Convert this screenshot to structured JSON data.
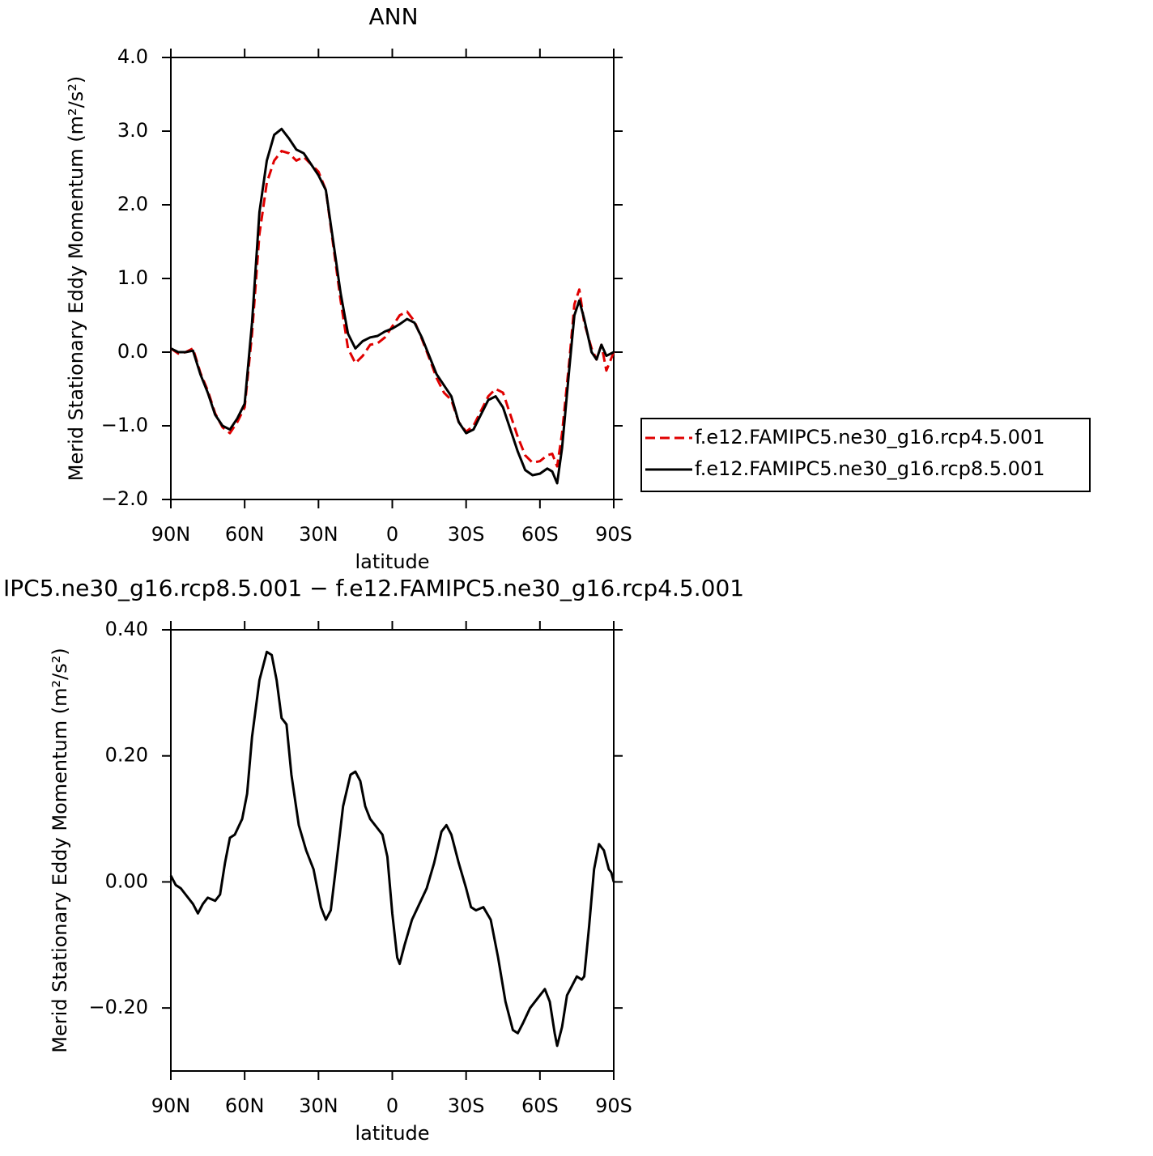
{
  "chart_data": [
    {
      "type": "line",
      "title": "ANN",
      "xlabel": "latitude",
      "ylabel": "Merid Stationary Eddy Momentum (m²/s²)",
      "xlim": [
        90,
        -90
      ],
      "xticks": [
        {
          "value": 90,
          "label": "90N"
        },
        {
          "value": 60,
          "label": "60N"
        },
        {
          "value": 30,
          "label": "30N"
        },
        0,
        {
          "value": -30,
          "label": "30S"
        },
        {
          "value": -60,
          "label": "60S"
        },
        {
          "value": -90,
          "label": "90S"
        }
      ],
      "ylim": [
        -2,
        4
      ],
      "yticks": [
        {
          "value": -2,
          "label": "−2.0"
        },
        {
          "value": -1,
          "label": "−1.0"
        },
        {
          "value": 0,
          "label": "0.0"
        },
        {
          "value": 1,
          "label": "1.0"
        },
        {
          "value": 2,
          "label": "2.0"
        },
        {
          "value": 3,
          "label": "3.0"
        },
        {
          "value": 4,
          "label": "4.0"
        }
      ],
      "legend": "right",
      "x": [
        90,
        87,
        84,
        81,
        78,
        75,
        72,
        69,
        66,
        63,
        60,
        57,
        54,
        51,
        48,
        45,
        42,
        39,
        36,
        33,
        30,
        27,
        24,
        21,
        18,
        15,
        12,
        9,
        6,
        3,
        0,
        -3,
        -6,
        -9,
        -12,
        -15,
        -18,
        -21,
        -24,
        -27,
        -30,
        -33,
        -36,
        -39,
        -42,
        -45,
        -48,
        -51,
        -54,
        -57,
        -60,
        -63,
        -65,
        -67,
        -69,
        -72,
        -74,
        -76,
        -78,
        -81,
        -83,
        -85,
        -87,
        -90
      ],
      "series": [
        {
          "name": "f.e12.FAMIPC5.ne30_g16.rcp4.5.001",
          "color": "#e00000",
          "style": "dashed",
          "values": [
            0.05,
            -0.02,
            0.0,
            0.05,
            -0.28,
            -0.52,
            -0.83,
            -1.02,
            -1.1,
            -0.95,
            -0.75,
            0.25,
            1.6,
            2.3,
            2.6,
            2.73,
            2.7,
            2.6,
            2.65,
            2.55,
            2.45,
            2.2,
            1.45,
            0.7,
            0.05,
            -0.15,
            -0.05,
            0.1,
            0.12,
            0.2,
            0.35,
            0.5,
            0.55,
            0.42,
            0.18,
            -0.08,
            -0.35,
            -0.55,
            -0.65,
            -0.95,
            -1.08,
            -1.0,
            -0.8,
            -0.6,
            -0.5,
            -0.55,
            -0.85,
            -1.15,
            -1.4,
            -1.5,
            -1.48,
            -1.4,
            -1.38,
            -1.55,
            -1.1,
            -0.1,
            0.65,
            0.85,
            0.4,
            0.05,
            -0.1,
            0.1,
            -0.25,
            0.0
          ]
        },
        {
          "name": "f.e12.FAMIPC5.ne30_g16.rcp8.5.001",
          "color": "#000000",
          "style": "solid",
          "values": [
            0.05,
            0.0,
            0.0,
            0.02,
            -0.3,
            -0.55,
            -0.85,
            -1.0,
            -1.05,
            -0.9,
            -0.7,
            0.4,
            1.9,
            2.6,
            2.95,
            3.03,
            2.9,
            2.75,
            2.7,
            2.55,
            2.4,
            2.2,
            1.5,
            0.8,
            0.25,
            0.05,
            0.15,
            0.2,
            0.22,
            0.28,
            0.32,
            0.38,
            0.45,
            0.4,
            0.2,
            -0.05,
            -0.3,
            -0.45,
            -0.6,
            -0.95,
            -1.1,
            -1.05,
            -0.85,
            -0.65,
            -0.6,
            -0.75,
            -1.05,
            -1.35,
            -1.6,
            -1.67,
            -1.65,
            -1.58,
            -1.62,
            -1.78,
            -1.3,
            -0.2,
            0.5,
            0.7,
            0.45,
            0.0,
            -0.1,
            0.1,
            -0.05,
            0.0
          ]
        }
      ]
    },
    {
      "type": "line",
      "title": "IPC5.ne30_g16.rcp8.5.001 − f.e12.FAMIPC5.ne30_g16.rcp4.5.001",
      "xlabel": "latitude",
      "ylabel": "Merid Stationary Eddy Momentum (m²/s²)",
      "xlim": [
        90,
        -90
      ],
      "xticks": [
        {
          "value": 90,
          "label": "90N"
        },
        {
          "value": 60,
          "label": "60N"
        },
        {
          "value": 30,
          "label": "30N"
        },
        0,
        {
          "value": -30,
          "label": "30S"
        },
        {
          "value": -60,
          "label": "60S"
        },
        {
          "value": -90,
          "label": "90S"
        }
      ],
      "ylim": [
        -0.3,
        0.4
      ],
      "yticks": [
        {
          "value": -0.2,
          "label": "−0.20"
        },
        {
          "value": 0,
          "label": "0.00"
        },
        {
          "value": 0.2,
          "label": "0.20"
        },
        {
          "value": 0.4,
          "label": "0.40"
        }
      ],
      "x": [
        90,
        88,
        86,
        84,
        81,
        79,
        77,
        75,
        72,
        70,
        68,
        66,
        64,
        61,
        59,
        57,
        54,
        51,
        49,
        47,
        45,
        43,
        41,
        38,
        35,
        32,
        29,
        27,
        25,
        23,
        20,
        17,
        15,
        13,
        11,
        9,
        6,
        4,
        2,
        0,
        -2,
        -3,
        -5,
        -8,
        -11,
        -14,
        -17,
        -20,
        -22,
        -24,
        -27,
        -30,
        -32,
        -34,
        -37,
        -40,
        -43,
        -46,
        -49,
        -51,
        -53,
        -56,
        -59,
        -62,
        -64,
        -66,
        -67,
        -69,
        -71,
        -73,
        -75,
        -77,
        -78,
        -80,
        -82,
        -84,
        -86,
        -88,
        -89,
        -90
      ],
      "series": [
        {
          "color": "#000000",
          "style": "solid",
          "values": [
            0.01,
            -0.005,
            -0.01,
            -0.02,
            -0.035,
            -0.05,
            -0.035,
            -0.025,
            -0.03,
            -0.02,
            0.03,
            0.07,
            0.075,
            0.1,
            0.14,
            0.23,
            0.32,
            0.365,
            0.36,
            0.32,
            0.26,
            0.25,
            0.17,
            0.09,
            0.05,
            0.02,
            -0.04,
            -0.06,
            -0.045,
            0.02,
            0.12,
            0.17,
            0.175,
            0.16,
            0.12,
            0.1,
            0.085,
            0.075,
            0.04,
            -0.05,
            -0.12,
            -0.13,
            -0.1,
            -0.06,
            -0.035,
            -0.01,
            0.03,
            0.08,
            0.09,
            0.075,
            0.03,
            -0.01,
            -0.04,
            -0.045,
            -0.04,
            -0.06,
            -0.12,
            -0.19,
            -0.235,
            -0.24,
            -0.225,
            -0.2,
            -0.185,
            -0.17,
            -0.19,
            -0.24,
            -0.26,
            -0.23,
            -0.18,
            -0.165,
            -0.15,
            -0.155,
            -0.15,
            -0.07,
            0.02,
            0.06,
            0.05,
            0.02,
            0.015,
            0.0
          ]
        }
      ]
    }
  ]
}
